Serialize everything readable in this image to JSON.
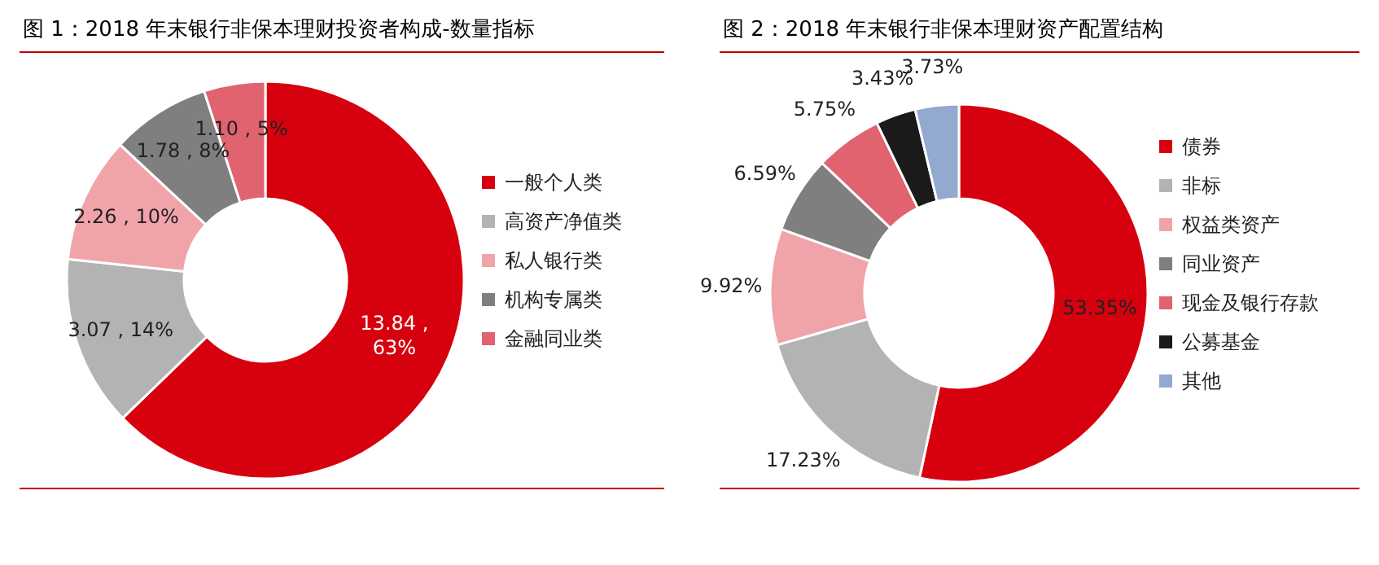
{
  "chart_data": [
    {
      "type": "donut",
      "title": "图 1：2018 年末银行非保本理财投资者构成-数量指标",
      "categories": [
        "一般个人类",
        "高资产净值类",
        "私人银行类",
        "机构专属类",
        "金融同业类"
      ],
      "values": [
        13.84,
        3.07,
        2.26,
        1.78,
        1.1
      ],
      "colors": [
        "#d7000f",
        "#b3b3b3",
        "#f1a3aa",
        "#7f7f7f",
        "#e0636f"
      ],
      "value_labels": [
        "13.84 ,\n63%",
        "3.07 , 14%",
        "2.26 , 10%",
        "1.78 , 8%",
        "1.10 , 5%"
      ],
      "legend": "right"
    },
    {
      "type": "donut",
      "title": "图 2：2018 年末银行非保本理财资产配置结构",
      "categories": [
        "债券",
        "非标",
        "权益类资产",
        "同业资产",
        "现金及银行存款",
        "公募基金",
        "其他"
      ],
      "values": [
        53.35,
        17.23,
        9.92,
        6.59,
        5.75,
        3.43,
        3.73
      ],
      "colors": [
        "#d7000f",
        "#b3b3b3",
        "#f1a3aa",
        "#7f7f7f",
        "#e0636f",
        "#1a1a1a",
        "#94a9cf"
      ],
      "value_labels": [
        "53.35%",
        "17.23%",
        "9.92%",
        "6.59%",
        "5.75%",
        "3.43%",
        "3.73%"
      ],
      "legend": "right"
    }
  ]
}
